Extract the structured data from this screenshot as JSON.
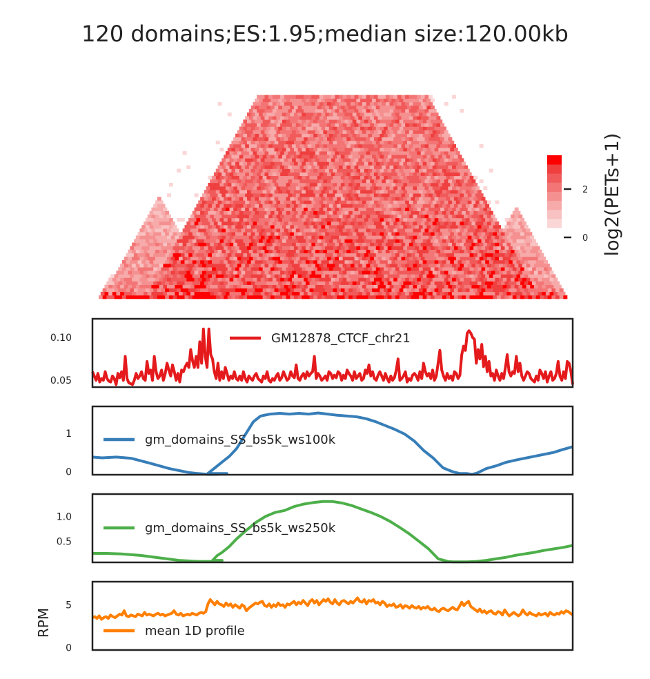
{
  "title": "120 domains;ES:1.95;median size:120.00kb",
  "colorbar": {
    "label": "log2(PETs+1)",
    "ticks": [
      {
        "label": "0",
        "value": 0
      },
      {
        "label": "2",
        "value": 2
      }
    ],
    "range": [
      0,
      3.5
    ],
    "colors": [
      "#fbd6d6",
      "#f9c2c2",
      "#f7aaaa",
      "#f59090",
      "#f37575",
      "#f15a5a",
      "#ef3f3f",
      "#ff0000"
    ]
  },
  "chart_data": [
    {
      "type": "heatmap",
      "description_kind": "triangular contact map",
      "bins": 120,
      "colorbar_label": "log2(PETs+1)",
      "value_range": [
        0,
        3.5
      ],
      "domain_peaks": [
        {
          "center_bin": 15,
          "height_bins": 14,
          "intensity": 1.6
        },
        {
          "center_bin": 62,
          "height_bins": 50,
          "intensity": 2.4
        },
        {
          "center_bin": 108,
          "height_bins": 14,
          "intensity": 1.6
        }
      ]
    },
    {
      "type": "line",
      "series": [
        {
          "name": "GM12878_CTCF_chr21",
          "color": "#e41a1c",
          "values": [
            0.06,
            0.055,
            0.05,
            0.058,
            0.048,
            0.052,
            0.05,
            0.06,
            0.052,
            0.049,
            0.048,
            0.055,
            0.052,
            0.045,
            0.058,
            0.053,
            0.06,
            0.05,
            0.078,
            0.052,
            0.047,
            0.046,
            0.045,
            0.05,
            0.058,
            0.052,
            0.055,
            0.06,
            0.052,
            0.05,
            0.072,
            0.058,
            0.062,
            0.05,
            0.078,
            0.06,
            0.052,
            0.055,
            0.062,
            0.05,
            0.058,
            0.07,
            0.062,
            0.055,
            0.068,
            0.06,
            0.05,
            0.058,
            0.048,
            0.062,
            0.06,
            0.066,
            0.07,
            0.065,
            0.086,
            0.073,
            0.065,
            0.078,
            0.065,
            0.095,
            0.07,
            0.11,
            0.078,
            0.065,
            0.11,
            0.08,
            0.075,
            0.06,
            0.052,
            0.07,
            0.05,
            0.06,
            0.052,
            0.065,
            0.058,
            0.05,
            0.055,
            0.052,
            0.06,
            0.052,
            0.05,
            0.055,
            0.05,
            0.06,
            0.052,
            0.048,
            0.055,
            0.052,
            0.05,
            0.055,
            0.058,
            0.052,
            0.05,
            0.048,
            0.055,
            0.052,
            0.06,
            0.05,
            0.048,
            0.052,
            0.05,
            0.055,
            0.058,
            0.05,
            0.053,
            0.06,
            0.055,
            0.05,
            0.052,
            0.06,
            0.055,
            0.053,
            0.068,
            0.052,
            0.05,
            0.055,
            0.058,
            0.052,
            0.06,
            0.055,
            0.058,
            0.06,
            0.078,
            0.052,
            0.058,
            0.055,
            0.05,
            0.052,
            0.055,
            0.05,
            0.06,
            0.058,
            0.052,
            0.056,
            0.053,
            0.06,
            0.058,
            0.05,
            0.056,
            0.052,
            0.062,
            0.058,
            0.055,
            0.05,
            0.06,
            0.052,
            0.055,
            0.058,
            0.05,
            0.052,
            0.062,
            0.058,
            0.068,
            0.055,
            0.06,
            0.052,
            0.05,
            0.056,
            0.06,
            0.055,
            0.05,
            0.058,
            0.052,
            0.048,
            0.055,
            0.05,
            0.053,
            0.062,
            0.075,
            0.05,
            0.052,
            0.055,
            0.06,
            0.048,
            0.052,
            0.05,
            0.056,
            0.058,
            0.055,
            0.05,
            0.06,
            0.052,
            0.07,
            0.06,
            0.055,
            0.058,
            0.052,
            0.062,
            0.05,
            0.055,
            0.07,
            0.085,
            0.062,
            0.055,
            0.05,
            0.058,
            0.052,
            0.055,
            0.05,
            0.06,
            0.058,
            0.052,
            0.056,
            0.08,
            0.09,
            0.085,
            0.105,
            0.108,
            0.105,
            0.1,
            0.098,
            0.07,
            0.086,
            0.075,
            0.092,
            0.066,
            0.078,
            0.06,
            0.072,
            0.055,
            0.058,
            0.05,
            0.062,
            0.055,
            0.05,
            0.058,
            0.052,
            0.065,
            0.08,
            0.06,
            0.055,
            0.06,
            0.058,
            0.078,
            0.06,
            0.07,
            0.055,
            0.05,
            0.055,
            0.06,
            0.058,
            0.052,
            0.05,
            0.048,
            0.055,
            0.05,
            0.062,
            0.058,
            0.052,
            0.06,
            0.048,
            0.055,
            0.06,
            0.05,
            0.052,
            0.058,
            0.072,
            0.055,
            0.05,
            0.06,
            0.052,
            0.072,
            0.07,
            0.06,
            0.045
          ]
        }
      ],
      "yticks": [
        {
          "label": "0.05",
          "value": 0.05
        },
        {
          "label": "0.10",
          "value": 0.1
        }
      ],
      "ylim": [
        0.042,
        0.122
      ]
    },
    {
      "type": "line",
      "series": [
        {
          "name": "gm_domains_SS_bs5k_ws100k",
          "color": "#377eb8",
          "x": [
            0,
            0.02,
            0.05,
            0.08,
            0.12,
            0.16,
            0.2,
            0.22,
            0.24,
            0.26,
            0.28,
            0.24,
            0.255,
            0.27,
            0.285,
            0.3,
            0.31,
            0.32,
            0.335,
            0.35,
            0.37,
            0.39,
            0.41,
            0.43,
            0.45,
            0.47,
            0.49,
            0.51,
            0.53,
            0.55,
            0.57,
            0.59,
            0.61,
            0.63,
            0.65,
            0.67,
            0.69,
            0.71,
            0.73,
            0.75,
            0.765,
            0.78,
            0.79,
            0.8,
            0.81,
            0.82,
            0.84,
            0.86,
            0.88,
            0.9,
            0.92,
            0.94,
            0.96,
            0.98,
            1.0
          ],
          "values": [
            0.38,
            0.36,
            0.38,
            0.35,
            0.22,
            0.08,
            -0.02,
            -0.05,
            -0.07,
            -0.07,
            -0.05,
            -0.05,
            0.1,
            0.25,
            0.4,
            0.6,
            0.8,
            1.0,
            1.3,
            1.45,
            1.5,
            1.52,
            1.5,
            1.52,
            1.5,
            1.53,
            1.5,
            1.47,
            1.45,
            1.43,
            1.38,
            1.3,
            1.2,
            1.1,
            0.98,
            0.8,
            0.55,
            0.35,
            0.1,
            0.0,
            -0.05,
            -0.05,
            -0.07,
            -0.04,
            0.02,
            0.08,
            0.15,
            0.24,
            0.3,
            0.35,
            0.4,
            0.45,
            0.5,
            0.58,
            0.65
          ]
        }
      ],
      "yticks": [
        {
          "label": "0",
          "value": 0
        },
        {
          "label": "1",
          "value": 1
        }
      ],
      "ylim": [
        -0.08,
        1.7
      ]
    },
    {
      "type": "line",
      "series": [
        {
          "name": "gm_domains_SS_bs5k_ws250k",
          "color": "#4daf4a",
          "x": [
            0,
            0.03,
            0.06,
            0.1,
            0.14,
            0.18,
            0.22,
            0.25,
            0.27,
            0.25,
            0.26,
            0.27,
            0.285,
            0.3,
            0.32,
            0.34,
            0.36,
            0.38,
            0.4,
            0.42,
            0.44,
            0.46,
            0.48,
            0.5,
            0.52,
            0.54,
            0.56,
            0.58,
            0.6,
            0.62,
            0.64,
            0.66,
            0.68,
            0.7,
            0.72,
            0.74,
            0.75,
            0.76,
            0.78,
            0.8,
            0.82,
            0.84,
            0.86,
            0.88,
            0.9,
            0.92,
            0.94,
            0.96,
            0.98,
            1.0
          ],
          "values": [
            0.26,
            0.26,
            0.25,
            0.22,
            0.17,
            0.12,
            0.1,
            0.1,
            0.12,
            0.12,
            0.22,
            0.28,
            0.4,
            0.55,
            0.72,
            0.88,
            1.0,
            1.08,
            1.12,
            1.2,
            1.25,
            1.28,
            1.3,
            1.3,
            1.27,
            1.22,
            1.15,
            1.08,
            1.0,
            0.9,
            0.78,
            0.65,
            0.5,
            0.35,
            0.15,
            0.1,
            0.09,
            0.09,
            0.09,
            0.1,
            0.12,
            0.15,
            0.18,
            0.22,
            0.25,
            0.28,
            0.32,
            0.35,
            0.38,
            0.42
          ]
        }
      ],
      "yticks": [
        {
          "label": "0.5",
          "value": 0.5
        },
        {
          "label": "1.0",
          "value": 1.0
        }
      ],
      "ylim": [
        0.08,
        1.45
      ]
    },
    {
      "type": "line",
      "ylabel": "RPM",
      "series": [
        {
          "name": "mean 1D profile",
          "color": "#ff7f00",
          "values": [
            3.5,
            3.6,
            3.4,
            3.7,
            3.3,
            3.5,
            3.6,
            3.4,
            3.8,
            3.6,
            3.5,
            3.7,
            3.9,
            3.8,
            4.3,
            3.7,
            3.6,
            3.8,
            3.7,
            3.6,
            3.9,
            3.8,
            3.7,
            4.1,
            3.8,
            3.9,
            3.8,
            3.7,
            3.9,
            4.0,
            3.8,
            3.9,
            3.7,
            3.8,
            3.9,
            4.0,
            4.3,
            3.9,
            3.8,
            4.0,
            3.7,
            3.8,
            3.9,
            3.8,
            4.0,
            3.9,
            3.8,
            4.0,
            4.1,
            4.0,
            4.2,
            5.1,
            5.6,
            5.3,
            5.0,
            5.4,
            5.1,
            5.0,
            4.8,
            5.2,
            4.9,
            5.1,
            4.7,
            5.0,
            4.8,
            4.6,
            5.0,
            4.8,
            4.3,
            4.6,
            4.8,
            5.0,
            5.2,
            5.1,
            5.3,
            5.4,
            4.9,
            4.8,
            5.1,
            4.7,
            5.0,
            4.8,
            5.2,
            4.9,
            5.0,
            4.7,
            5.1,
            5.0,
            5.2,
            5.4,
            5.0,
            5.3,
            5.1,
            5.5,
            5.2,
            4.9,
            5.4,
            5.6,
            5.2,
            5.5,
            5.0,
            5.3,
            5.6,
            5.4,
            5.7,
            5.3,
            5.1,
            5.6,
            5.2,
            5.0,
            5.4,
            5.5,
            5.3,
            5.1,
            5.4,
            5.2,
            5.5,
            5.8,
            5.4,
            5.3,
            5.6,
            5.1,
            5.5,
            5.4,
            5.6,
            5.2,
            5.3,
            5.0,
            5.4,
            5.2,
            4.8,
            5.0,
            4.9,
            5.1,
            4.7,
            4.8,
            5.0,
            4.6,
            4.9,
            4.8,
            4.6,
            4.9,
            4.7,
            4.6,
            4.8,
            4.5,
            4.7,
            4.6,
            4.8,
            4.5,
            4.4,
            4.6,
            4.3,
            4.2,
            4.5,
            4.6,
            4.4,
            4.3,
            4.5,
            4.7,
            4.5,
            4.4,
            4.8,
            5.3,
            4.9,
            5.2,
            5.4,
            4.8,
            4.6,
            4.4,
            4.2,
            4.5,
            4.1,
            4.3,
            4.0,
            4.2,
            4.3,
            4.0,
            3.9,
            4.2,
            4.1,
            3.8,
            4.4,
            4.0,
            3.7,
            3.9,
            4.1,
            3.9,
            3.7,
            3.9,
            4.4,
            4.0,
            3.8,
            4.1,
            3.9,
            3.8,
            3.7,
            4.0,
            3.8,
            3.9,
            4.0,
            3.7,
            4.1,
            3.9,
            3.8,
            4.0,
            3.9,
            4.2,
            4.0,
            4.3,
            4.2,
            4.0,
            3.8
          ]
        }
      ],
      "yticks": [
        {
          "label": "0",
          "value": 0
        },
        {
          "label": "5",
          "value": 5
        }
      ],
      "ylim": [
        -0.3,
        7.7
      ]
    }
  ]
}
